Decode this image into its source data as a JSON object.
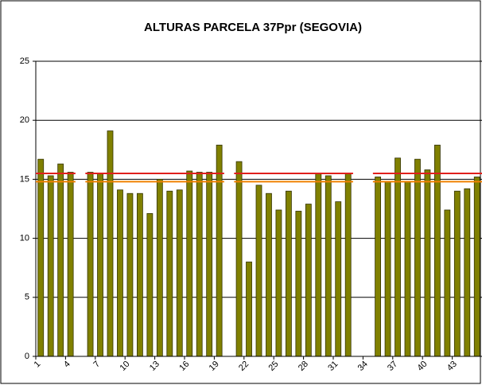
{
  "chart_data": {
    "type": "bar",
    "title": "ALTURAS PARCELA 37Ppr (SEGOVIA)",
    "categories": [
      "1",
      null,
      null,
      "4",
      null,
      null,
      "7",
      null,
      null,
      "10",
      null,
      null,
      "13",
      null,
      null,
      "16",
      null,
      null,
      "19",
      null,
      null,
      "22",
      null,
      null,
      "25",
      null,
      null,
      "28",
      null,
      null,
      "31",
      null,
      null,
      "34",
      null,
      null,
      "37",
      null,
      null,
      "40",
      null,
      null,
      "43",
      null,
      null
    ],
    "values": [
      16.7,
      15.3,
      16.3,
      15.6,
      null,
      15.6,
      15.5,
      19.1,
      14.1,
      13.8,
      13.8,
      12.1,
      15.0,
      14.0,
      14.1,
      15.7,
      15.6,
      15.6,
      17.9,
      null,
      16.5,
      8.0,
      14.5,
      13.8,
      12.4,
      14.0,
      12.3,
      12.9,
      15.5,
      15.3,
      13.1,
      15.5,
      null,
      null,
      15.2,
      14.8,
      16.8,
      14.8,
      16.7,
      15.8,
      17.9,
      12.4,
      14.0,
      14.2,
      15.2
    ],
    "color": "#808000",
    "ylim": [
      0,
      25
    ],
    "yticks": [
      0,
      5,
      10,
      15,
      20,
      25
    ],
    "grid": true,
    "reference_lines": [
      {
        "value": 15.5,
        "color": "#e0201c"
      },
      {
        "value": 14.8,
        "color": "#f08000"
      }
    ]
  }
}
